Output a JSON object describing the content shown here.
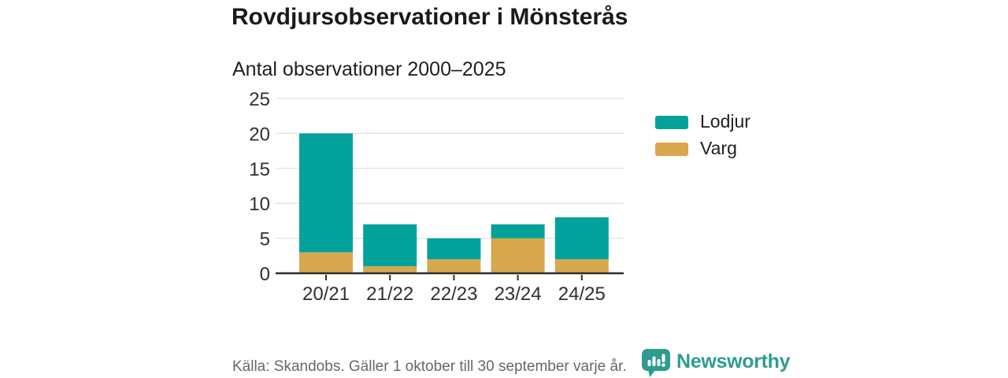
{
  "header": {
    "title": "Rovdjursobservationer i Mönsterås",
    "subtitle": "Antal observationer 2000–2025"
  },
  "chart_data": {
    "type": "bar",
    "stacked": true,
    "title": "Rovdjursobservationer i Mönsterås",
    "subtitle": "Antal observationer 2000–2025",
    "categories": [
      "20/21",
      "21/22",
      "22/23",
      "23/24",
      "24/25"
    ],
    "series": [
      {
        "name": "Lodjur",
        "color_key": "lodjur",
        "values": [
          17,
          6,
          3,
          2,
          6
        ]
      },
      {
        "name": "Varg",
        "color_key": "varg",
        "values": [
          3,
          1,
          2,
          5,
          2
        ]
      }
    ],
    "stack_bottom_to_top": [
      "Varg",
      "Lodjur"
    ],
    "totals": [
      20,
      7,
      5,
      7,
      8
    ],
    "yticks": [
      0,
      5,
      10,
      15,
      20,
      25
    ],
    "ylim": [
      0,
      25
    ],
    "xlabel": "",
    "ylabel": "",
    "grid": "horizontal",
    "legend_position": "right"
  },
  "footer": {
    "source": "Källa: Skandobs. Gäller 1 oktober till 30 september varje år.",
    "brand": "Newsworthy"
  },
  "colors": {
    "lodjur": "#00a29a",
    "varg": "#d8a74e",
    "brand": "#2e9c90",
    "grid": "#e1e1e1",
    "axis": "#2d2d2d",
    "tick_label": "#303030",
    "title": "#1a1a1a",
    "muted": "#66666e"
  }
}
